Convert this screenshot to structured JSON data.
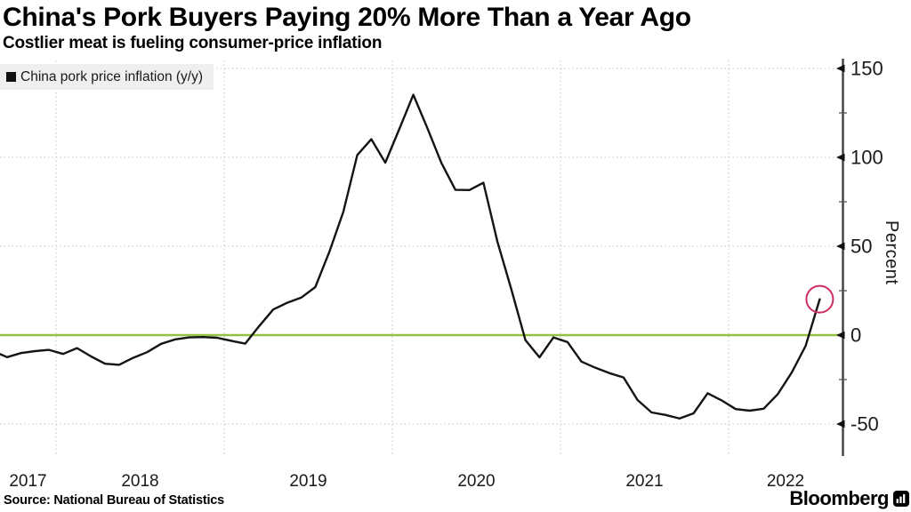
{
  "header": {
    "title": "China's Pork Buyers Paying 20% More Than a Year Ago",
    "subtitle": "Costlier meat is fueling consumer-price inflation"
  },
  "legend": {
    "marker": "black-square",
    "label": "China pork price inflation (y/y)"
  },
  "y_axis": {
    "label": "Percent",
    "major_ticks": [
      150,
      100,
      50,
      0,
      -50
    ],
    "minor_ticks": [
      125,
      75,
      25,
      -25
    ],
    "range": [
      -68,
      155
    ]
  },
  "x_axis": {
    "years": [
      "2017",
      "2018",
      "2019",
      "2020",
      "2021",
      "2022"
    ]
  },
  "footer": {
    "source": "Source: National Bureau of Statistics",
    "brand": "Bloomberg"
  },
  "colors": {
    "line": "#141414",
    "zero_line": "#94c13d",
    "annotation_circle": "#d02f5e",
    "grid": "#c6c6c6",
    "axis": "#3f3f3f",
    "tick_text": "#1a1a1a",
    "legend_bg": "#efefef"
  },
  "chart_data": {
    "type": "line",
    "title": "China's Pork Buyers Paying 20% More Than a Year Ago",
    "subtitle": "Costlier meat is fueling consumer-price inflation",
    "series_name": "China pork price inflation (y/y)",
    "ylabel": "Percent",
    "ylim": [
      -68,
      155
    ],
    "grid": "dotted",
    "zero_line_color": "#94c13d",
    "last_point_annotation": "red-circle",
    "x": [
      "2017-08",
      "2017-09",
      "2017-10",
      "2017-11",
      "2017-12",
      "2018-01",
      "2018-02",
      "2018-03",
      "2018-04",
      "2018-05",
      "2018-06",
      "2018-07",
      "2018-08",
      "2018-09",
      "2018-10",
      "2018-11",
      "2018-12",
      "2019-01",
      "2019-02",
      "2019-03",
      "2019-04",
      "2019-05",
      "2019-06",
      "2019-07",
      "2019-08",
      "2019-09",
      "2019-10",
      "2019-11",
      "2019-12",
      "2020-01",
      "2020-02",
      "2020-03",
      "2020-04",
      "2020-05",
      "2020-06",
      "2020-07",
      "2020-08",
      "2020-09",
      "2020-10",
      "2020-11",
      "2020-12",
      "2021-01",
      "2021-02",
      "2021-03",
      "2021-04",
      "2021-05",
      "2021-06",
      "2021-07",
      "2021-08",
      "2021-09",
      "2021-10",
      "2021-11",
      "2021-12",
      "2022-01",
      "2022-02",
      "2022-03",
      "2022-04",
      "2022-05",
      "2022-06",
      "2022-07"
    ],
    "values": [
      -8.9,
      -12.4,
      -10.1,
      -9.0,
      -8.3,
      -10.6,
      -7.3,
      -12.0,
      -16.1,
      -16.7,
      -12.8,
      -9.6,
      -4.9,
      -2.4,
      -1.3,
      -1.1,
      -1.5,
      -3.2,
      -4.8,
      5.1,
      14.4,
      18.2,
      21.1,
      27.0,
      46.7,
      69.3,
      101.3,
      110.2,
      97.0,
      116.0,
      135.2,
      116.4,
      96.9,
      81.7,
      81.6,
      85.7,
      52.6,
      25.5,
      -2.8,
      -12.5,
      -1.3,
      -3.9,
      -14.9,
      -18.4,
      -21.4,
      -23.8,
      -36.5,
      -43.5,
      -44.9,
      -46.9,
      -44.0,
      -32.7,
      -36.7,
      -41.6,
      -42.5,
      -41.4,
      -33.3,
      -21.1,
      -6.0,
      20.2
    ]
  }
}
